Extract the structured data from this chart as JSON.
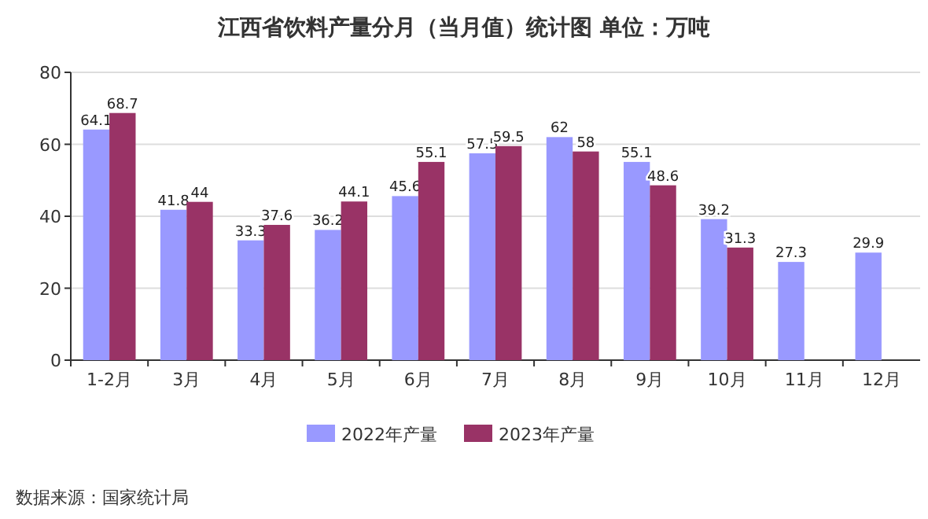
{
  "chart_data": {
    "type": "bar",
    "title": "江西省饮料产量分月（当月值）统计图 单位：万吨",
    "categories": [
      "1-2月",
      "3月",
      "4月",
      "5月",
      "6月",
      "7月",
      "8月",
      "9月",
      "10月",
      "11月",
      "12月"
    ],
    "series": [
      {
        "name": "2022年产量",
        "color": "#9999ff",
        "values": [
          64.1,
          41.8,
          33.3,
          36.2,
          45.6,
          57.5,
          62,
          55.1,
          39.2,
          27.3,
          29.9
        ]
      },
      {
        "name": "2023年产量",
        "color": "#993366",
        "values": [
          68.7,
          44,
          37.6,
          44.1,
          55.1,
          59.5,
          58,
          48.6,
          31.3,
          null,
          null
        ]
      }
    ],
    "ylim": [
      0,
      80
    ],
    "yticks": [
      0,
      20,
      40,
      60,
      80
    ],
    "grid": "y",
    "legend": "bottom",
    "data_labels": true,
    "annotations": [
      "数据来源：国家统计局"
    ]
  }
}
